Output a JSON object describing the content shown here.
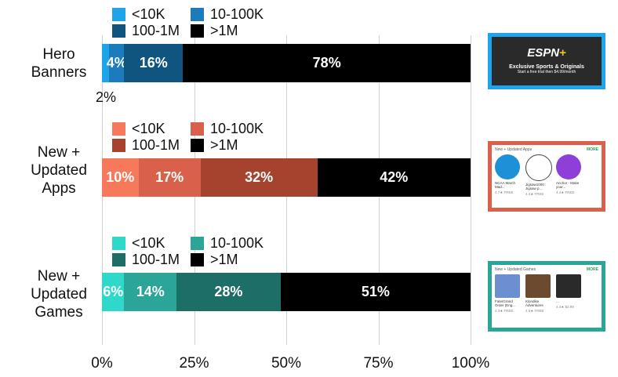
{
  "chart_data": {
    "type": "bar",
    "orientation": "horizontal-stacked-100",
    "xlabel": "",
    "ylabel": "",
    "xlim": [
      0,
      100
    ],
    "x_ticks": [
      "0%",
      "25%",
      "50%",
      "75%",
      "100%"
    ],
    "grid": true,
    "groups": [
      {
        "category": "Hero\nBanners",
        "legend": [
          "<10K",
          "10-100K",
          "100-1M",
          ">1M"
        ],
        "colors": [
          "#1ea4e9",
          "#1b7bbd",
          "#0f5580",
          "#000000"
        ],
        "values": [
          2,
          4,
          16,
          78
        ],
        "labels": [
          "2%",
          "4%",
          "16%",
          "78%"
        ]
      },
      {
        "category": "New +\nUpdated\nApps",
        "legend": [
          "<10K",
          "10-100K",
          "100-1M",
          ">1M"
        ],
        "colors": [
          "#f6795c",
          "#d9604a",
          "#a5432f",
          "#000000"
        ],
        "values": [
          10,
          17,
          32,
          42
        ],
        "labels": [
          "10%",
          "17%",
          "32%",
          "42%"
        ]
      },
      {
        "category": "New +\nUpdated\nGames",
        "legend": [
          "<10K",
          "10-100K",
          "100-1M",
          ">1M"
        ],
        "colors": [
          "#2ed9c9",
          "#2aa597",
          "#1c6e66",
          "#000000"
        ],
        "values": [
          6,
          14,
          28,
          51
        ],
        "labels": [
          "6%",
          "14%",
          "28%",
          "51%"
        ]
      }
    ]
  },
  "thumbnails": {
    "hero": {
      "border": "#1ea4e9",
      "logo": "ESPN",
      "logo_plus": "+",
      "title": "Exclusive Sports & Originals",
      "subtitle": "Start a free trial then $4.99/month"
    },
    "apps": {
      "border": "#d9604a",
      "title": "New + Updated Apps",
      "more": "MORE",
      "items": [
        {
          "name": "NCAA March Mad...",
          "meta": "4.7★  FREE",
          "color": "#1e90d8"
        },
        {
          "name": "Jigsaw1000 : Jigsaw p...",
          "meta": "4.4★  FREE",
          "color": "#ffffff"
        },
        {
          "name": "Anchor - Make your...",
          "meta": "4.4★  FREE",
          "color": "#8e3fd8"
        }
      ]
    },
    "games": {
      "border": "#2aa597",
      "title": "New + Updated Games",
      "more": "MORE",
      "items": [
        {
          "name": "Fate/Grand Order (Eng...",
          "meta": "4.3★  FREE",
          "color": "#6b8fd0"
        },
        {
          "name": "Klondike Adventures",
          "meta": "4.5★  FREE",
          "color": "#6b4a30"
        },
        {
          "name": "...",
          "meta": "4.4★  $2.99",
          "color": "#2a2a2a"
        }
      ]
    }
  }
}
